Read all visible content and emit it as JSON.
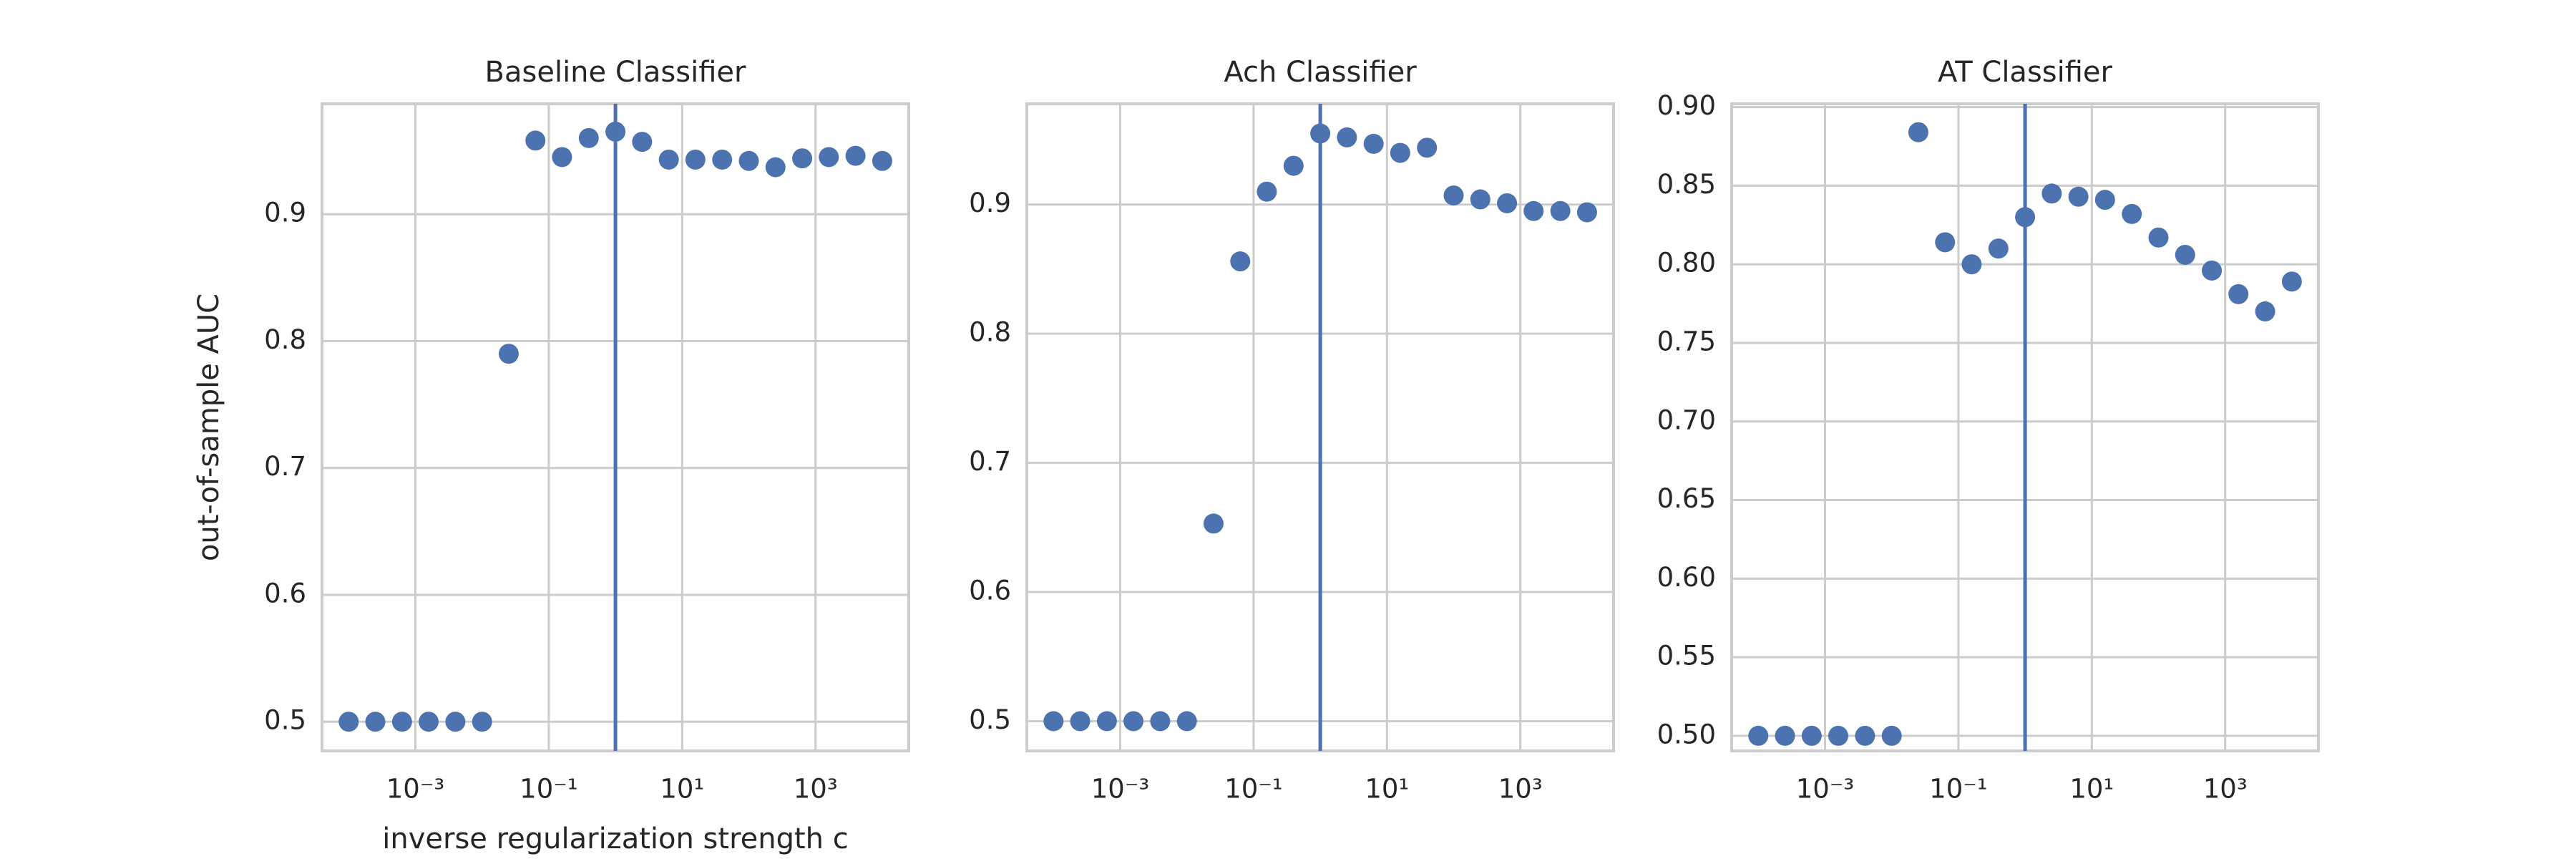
{
  "chart_data": [
    {
      "type": "scatter",
      "title": "Baseline Classifier",
      "x_label": "inverse regularization strength c",
      "y_label": "out-of-sample AUC",
      "log_x": true,
      "grid": true,
      "color": "#4c72b0",
      "vline": 1,
      "x": [
        0.0001,
        0.000251,
        0.000631,
        0.00158,
        0.00398,
        0.01,
        0.0251,
        0.0631,
        0.158,
        0.398,
        1,
        2.51,
        6.31,
        15.8,
        39.8,
        100,
        251,
        631,
        1580,
        3980,
        10000
      ],
      "values": [
        0.5,
        0.5,
        0.5,
        0.5,
        0.5,
        0.5,
        0.79,
        0.958,
        0.945,
        0.96,
        0.965,
        0.957,
        0.943,
        0.943,
        0.943,
        0.942,
        0.937,
        0.944,
        0.945,
        0.946,
        0.942
      ],
      "xlim": [
        3.98e-05,
        25000
      ],
      "xticks": [
        {
          "value": 0.001,
          "label": "10⁻³"
        },
        {
          "value": 0.1,
          "label": "10⁻¹"
        },
        {
          "value": 10,
          "label": "10¹"
        },
        {
          "value": 1000,
          "label": "10³"
        }
      ],
      "ylim": [
        0.477,
        0.987
      ],
      "yticks": [
        0.5,
        0.6,
        0.7,
        0.8,
        0.9
      ]
    },
    {
      "type": "scatter",
      "title": "Ach Classifier",
      "log_x": true,
      "grid": true,
      "color": "#4c72b0",
      "vline": 1,
      "x": [
        0.0001,
        0.000251,
        0.000631,
        0.00158,
        0.00398,
        0.01,
        0.0251,
        0.0631,
        0.158,
        0.398,
        1,
        2.51,
        6.31,
        15.8,
        39.8,
        100,
        251,
        631,
        1580,
        3980,
        10000
      ],
      "values": [
        0.5,
        0.5,
        0.5,
        0.5,
        0.5,
        0.5,
        0.653,
        0.856,
        0.91,
        0.93,
        0.955,
        0.952,
        0.947,
        0.94,
        0.944,
        0.907,
        0.904,
        0.901,
        0.895,
        0.895,
        0.894
      ],
      "xlim": [
        3.98e-05,
        25000
      ],
      "xticks": [
        {
          "value": 0.001,
          "label": "10⁻³"
        },
        {
          "value": 0.1,
          "label": "10⁻¹"
        },
        {
          "value": 10,
          "label": "10¹"
        },
        {
          "value": 1000,
          "label": "10³"
        }
      ],
      "ylim": [
        0.477,
        0.978
      ],
      "yticks": [
        0.5,
        0.6,
        0.7,
        0.8,
        0.9
      ]
    },
    {
      "type": "scatter",
      "title": "AT Classifier",
      "log_x": true,
      "grid": true,
      "color": "#4c72b0",
      "vline": 1,
      "x": [
        0.0001,
        0.000251,
        0.000631,
        0.00158,
        0.00398,
        0.01,
        0.0251,
        0.0631,
        0.158,
        0.398,
        1,
        2.51,
        6.31,
        15.8,
        39.8,
        100,
        251,
        631,
        1580,
        3980,
        10000
      ],
      "values": [
        0.5,
        0.5,
        0.5,
        0.5,
        0.5,
        0.5,
        0.884,
        0.814,
        0.8,
        0.81,
        0.83,
        0.845,
        0.843,
        0.841,
        0.832,
        0.817,
        0.806,
        0.796,
        0.781,
        0.77,
        0.789
      ],
      "xlim": [
        3.98e-05,
        25000
      ],
      "xticks": [
        {
          "value": 0.001,
          "label": "10⁻³"
        },
        {
          "value": 0.1,
          "label": "10⁻¹"
        },
        {
          "value": 10,
          "label": "10¹"
        },
        {
          "value": 1000,
          "label": "10³"
        }
      ],
      "ylim": [
        0.4904,
        0.9021
      ],
      "yticks": [
        {
          "value": 0.5,
          "label": "0.50"
        },
        {
          "value": 0.55,
          "label": "0.55"
        },
        {
          "value": 0.6,
          "label": "0.60"
        },
        {
          "value": 0.65,
          "label": "0.65"
        },
        {
          "value": 0.7,
          "label": "0.70"
        },
        {
          "value": 0.75,
          "label": "0.75"
        },
        {
          "value": 0.8,
          "label": "0.80"
        },
        {
          "value": 0.85,
          "label": "0.85"
        },
        {
          "value": 0.9,
          "label": "0.90"
        }
      ]
    }
  ]
}
